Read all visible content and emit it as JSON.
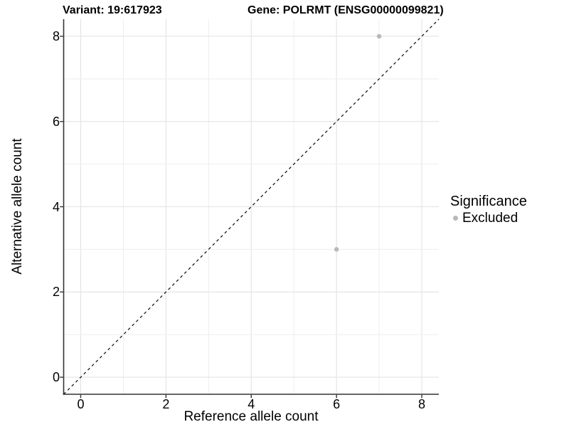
{
  "chart_data": {
    "type": "scatter",
    "title_left": "Variant: 19:617923",
    "title_right": "Gene: POLRMT (ENSG00000099821)",
    "xlabel": "Reference allele count",
    "ylabel": "Alternative allele count",
    "xlim": [
      -0.4,
      8.4
    ],
    "ylim": [
      -0.4,
      8.4
    ],
    "xticks": [
      0,
      2,
      4,
      6,
      8
    ],
    "yticks": [
      0,
      2,
      4,
      6,
      8
    ],
    "grid": "light gridlines at every integer (major at ticks, minor between)",
    "reference_line": {
      "equation": "y = x",
      "style": "dashed",
      "color": "#1a1a1a"
    },
    "series": [
      {
        "name": "Excluded",
        "color": "#b8b8b8",
        "points": [
          {
            "x": 7,
            "y": 8
          },
          {
            "x": 6,
            "y": 3
          }
        ]
      }
    ],
    "legend": {
      "title": "Significance",
      "position": "right",
      "items": [
        {
          "label": "Excluded",
          "color": "#b8b8b8"
        }
      ]
    }
  },
  "colors": {
    "background": "#ffffff",
    "axis_line": "#333333",
    "grid_major": "#e3e3e3",
    "grid_minor": "#eeeeee",
    "text": "#000000",
    "point": "#b8b8b8"
  }
}
